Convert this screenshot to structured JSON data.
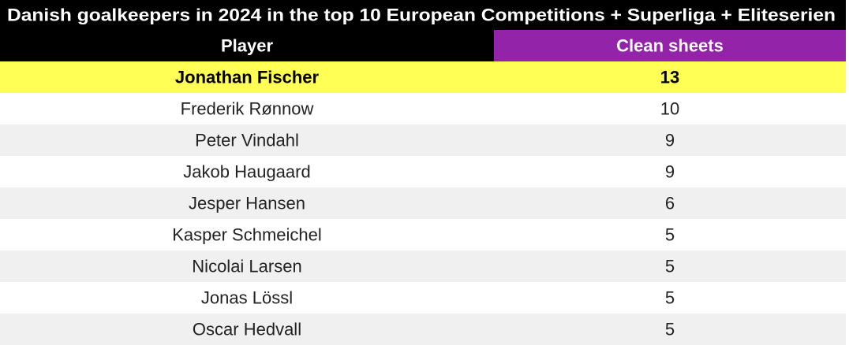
{
  "header": {
    "title": "Danish goalkeepers in 2024 in the top 10 European Competitions + Superliga + Eliteserien"
  },
  "table": {
    "columns": [
      "Player",
      "Clean sheets"
    ],
    "rows": [
      [
        "Jonathan Fischer",
        13
      ],
      [
        "Frederik Rønnow",
        10
      ],
      [
        "Peter Vindahl",
        9
      ],
      [
        "Jakob Haugaard",
        9
      ],
      [
        "Jesper Hansen",
        6
      ],
      [
        "Kasper Schmeichel",
        5
      ],
      [
        "Nicolai Larsen",
        5
      ],
      [
        "Jonas Lössl",
        5
      ],
      [
        "Oscar Hedvall",
        5
      ]
    ]
  }
}
